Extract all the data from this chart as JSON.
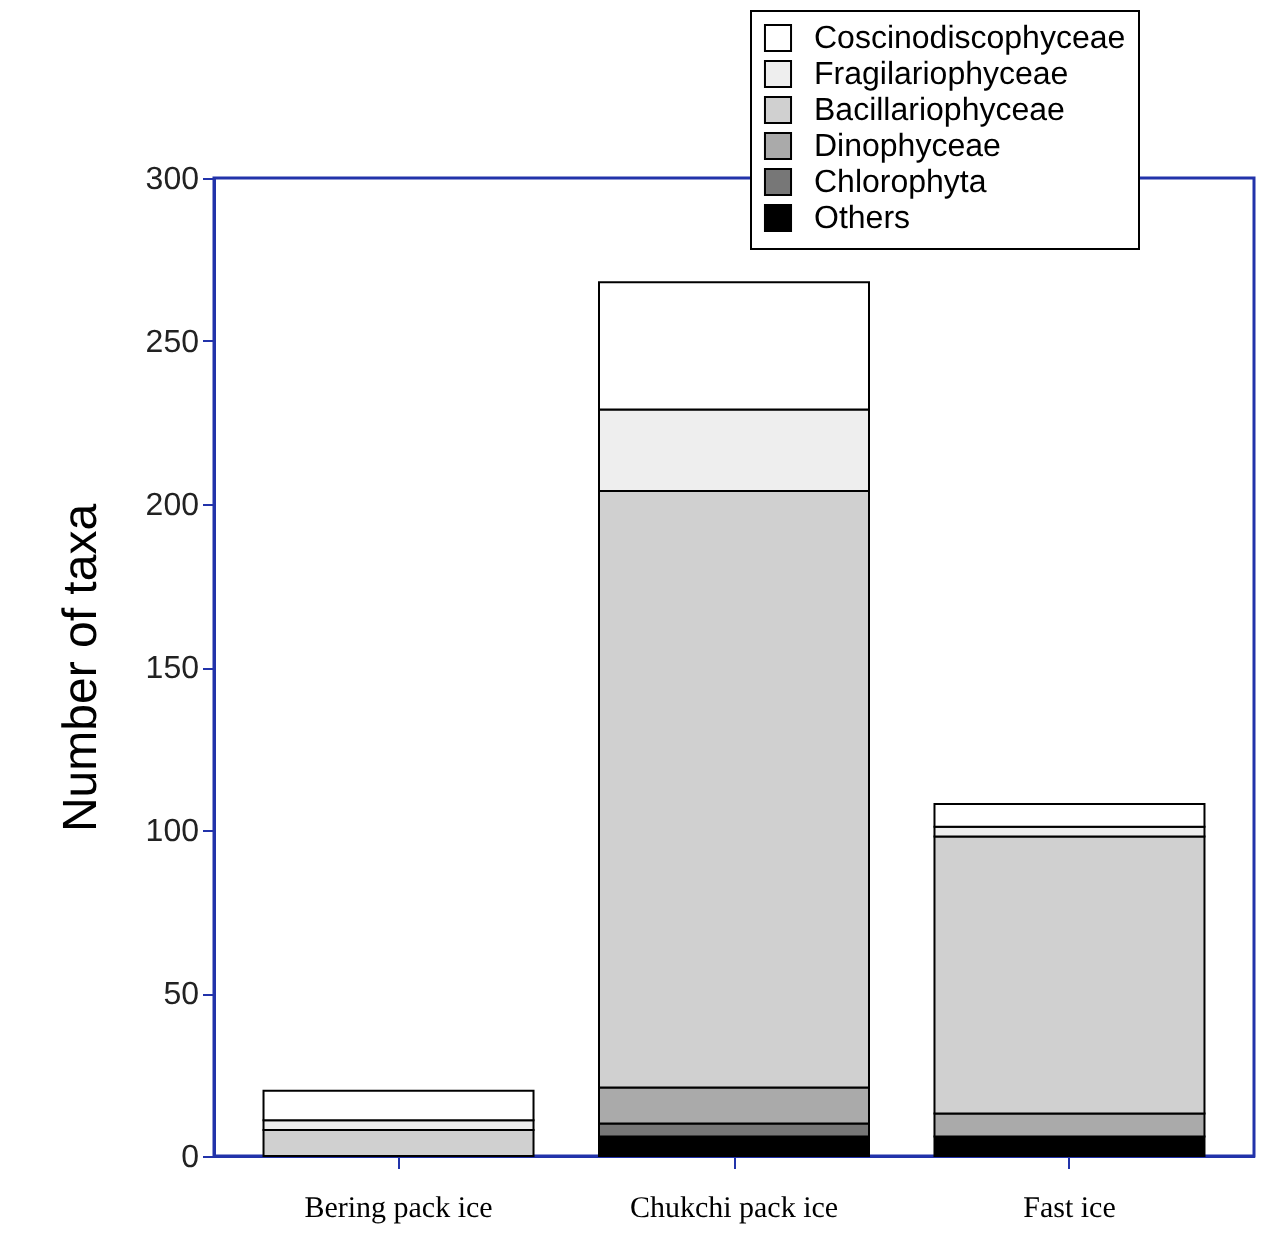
{
  "chart_data": {
    "type": "bar",
    "stacked": true,
    "ylabel": "Number of taxa",
    "categories": [
      "Bering pack ice",
      "Chukchi pack ice",
      "Fast ice"
    ],
    "series": [
      {
        "name": "Others",
        "color": "#000000",
        "values": [
          0,
          6,
          6
        ]
      },
      {
        "name": "Chlorophyta",
        "color": "#777777",
        "values": [
          0,
          4,
          0
        ]
      },
      {
        "name": "Dinophyceae",
        "color": "#aaaaaa",
        "values": [
          0,
          11,
          7
        ]
      },
      {
        "name": "Bacillariophyceae",
        "color": "#d0d0d0",
        "values": [
          8,
          183,
          85
        ]
      },
      {
        "name": "Fragilariophyceae",
        "color": "#eeeeee",
        "values": [
          3,
          25,
          3
        ]
      },
      {
        "name": "Coscinodiscophyceae",
        "color": "#ffffff",
        "values": [
          9,
          39,
          7
        ]
      }
    ],
    "ylim": [
      0,
      300
    ],
    "yticks": [
      0,
      50,
      100,
      150,
      200,
      250,
      300
    ],
    "legend": "top right",
    "grid": false
  }
}
